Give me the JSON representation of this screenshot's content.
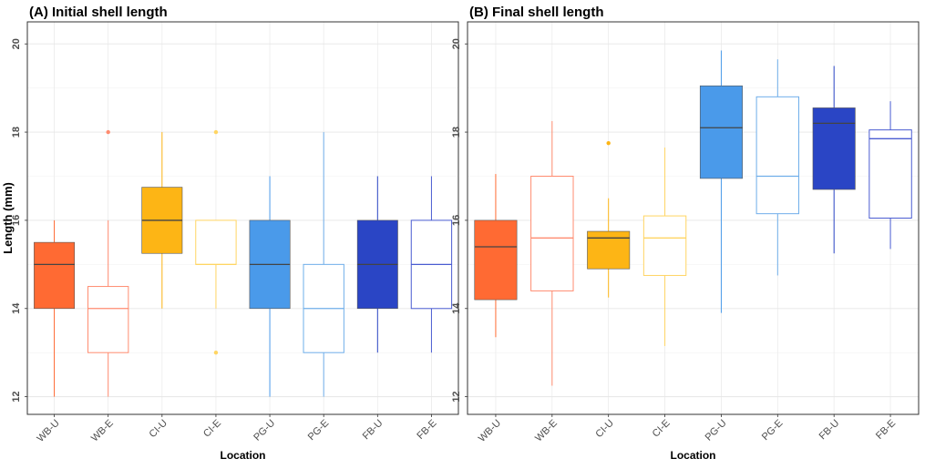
{
  "chart_data": {
    "type": "boxplot",
    "ylabel": "Length (mm)",
    "ylim": [
      11.6,
      20.5
    ],
    "yticks": [
      12,
      14,
      16,
      18,
      20
    ],
    "grid": true,
    "categories": [
      "WB-U",
      "WB-E",
      "CI-U",
      "CI-E",
      "PG-U",
      "PG-E",
      "FB-U",
      "FB-E"
    ],
    "colors": [
      "#FF6A33",
      "#FF8C70",
      "#FDB515",
      "#FFD563",
      "#4A9AEA",
      "#6FAEEA",
      "#2A45C5",
      "#4A5CD1"
    ],
    "filled": [
      true,
      false,
      true,
      false,
      true,
      false,
      true,
      false
    ],
    "panels": [
      {
        "title": "(A) Initial shell length",
        "xlabel": "Location",
        "boxes": [
          {
            "min": 12,
            "q1": 14,
            "median": 15,
            "q3": 15.5,
            "max": 16,
            "outliers": []
          },
          {
            "min": 12,
            "q1": 13,
            "median": 14,
            "q3": 14.5,
            "max": 16,
            "outliers": [
              18
            ]
          },
          {
            "min": 14,
            "q1": 15.25,
            "median": 16,
            "q3": 16.75,
            "max": 18,
            "outliers": []
          },
          {
            "min": 14,
            "q1": 15,
            "median": 15,
            "q3": 16,
            "max": 16,
            "outliers": [
              18,
              13
            ]
          },
          {
            "min": 12,
            "q1": 14,
            "median": 15,
            "q3": 16,
            "max": 17,
            "outliers": []
          },
          {
            "min": 12,
            "q1": 13,
            "median": 14,
            "q3": 15,
            "max": 18,
            "outliers": []
          },
          {
            "min": 13,
            "q1": 14,
            "median": 15,
            "q3": 16,
            "max": 17,
            "outliers": []
          },
          {
            "min": 13,
            "q1": 14,
            "median": 15,
            "q3": 16,
            "max": 17,
            "outliers": []
          }
        ]
      },
      {
        "title": "(B) Final shell length",
        "xlabel": "Location",
        "boxes": [
          {
            "min": 13.35,
            "q1": 14.2,
            "median": 15.4,
            "q3": 16.0,
            "max": 17.05,
            "outliers": []
          },
          {
            "min": 12.25,
            "q1": 14.4,
            "median": 15.6,
            "q3": 17.0,
            "max": 18.25,
            "outliers": []
          },
          {
            "min": 14.25,
            "q1": 14.9,
            "median": 15.6,
            "q3": 15.75,
            "max": 16.5,
            "outliers": [
              17.75
            ]
          },
          {
            "min": 13.15,
            "q1": 14.75,
            "median": 15.6,
            "q3": 16.1,
            "max": 17.65,
            "outliers": []
          },
          {
            "min": 13.9,
            "q1": 16.95,
            "median": 18.1,
            "q3": 19.05,
            "max": 19.85,
            "outliers": []
          },
          {
            "min": 14.75,
            "q1": 16.15,
            "median": 17.0,
            "q3": 18.8,
            "max": 19.65,
            "outliers": []
          },
          {
            "min": 15.25,
            "q1": 16.7,
            "median": 18.2,
            "q3": 18.55,
            "max": 19.5,
            "outliers": []
          },
          {
            "min": 15.35,
            "q1": 16.05,
            "median": 17.85,
            "q3": 18.05,
            "max": 18.7,
            "outliers": []
          }
        ]
      }
    ]
  }
}
